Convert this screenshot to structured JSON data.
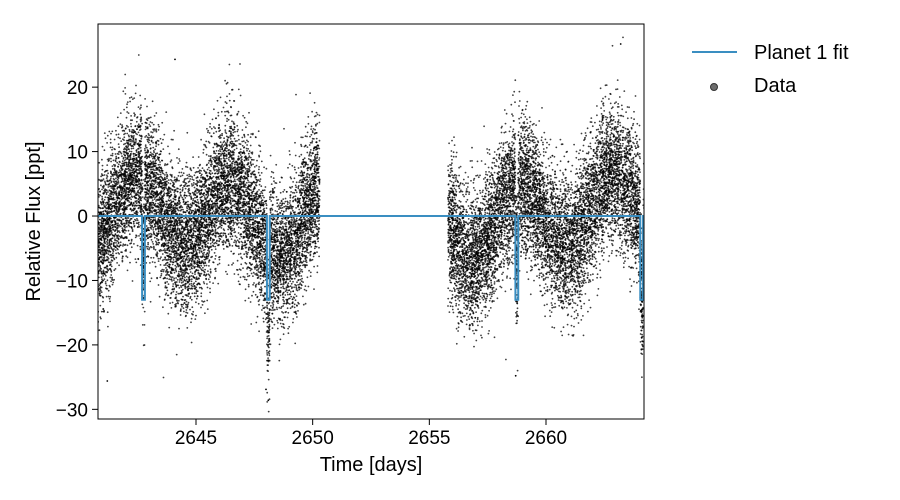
{
  "chart_data": {
    "type": "scatter",
    "xlabel": "Time [days]",
    "ylabel": "Relative Flux [ppt]",
    "xlim": [
      2640.8,
      2664.2
    ],
    "ylim": [
      -31.5,
      29.8
    ],
    "x_ticks": [
      2645,
      2650,
      2655,
      2660
    ],
    "y_ticks": [
      -30,
      -20,
      -10,
      0,
      10,
      20
    ],
    "x_tick_labels": [
      "2645",
      "2650",
      "2655",
      "2660"
    ],
    "y_tick_labels": [
      "−30",
      "−20",
      "−10",
      "0",
      "10",
      "20"
    ],
    "legend_position": "outside-right-top",
    "grid": false,
    "data_segments": [
      {
        "start": 2640.8,
        "end": 2650.3
      },
      {
        "start": 2655.8,
        "end": 2664.2
      }
    ],
    "series": [
      {
        "name": "Planet 1 fit",
        "kind": "line",
        "color": "#3a8ec1",
        "baseline": 0,
        "transit_depth": -13,
        "transit_duration": 0.12,
        "transit_times": [
          2642.75,
          2648.1,
          2658.75,
          2664.1
        ]
      },
      {
        "name": "Data",
        "kind": "scatter",
        "color": "#000000",
        "typical_range": [
          -15,
          15
        ],
        "extreme_points": [
          {
            "x": 2644.1,
            "y": 24.3
          },
          {
            "x": 2663.2,
            "y": 26.7
          },
          {
            "x": 2641.2,
            "y": -25.6
          },
          {
            "x": 2648.1,
            "y": -28.6
          },
          {
            "x": 2658.7,
            "y": -24.8
          },
          {
            "x": 2648.0,
            "y": -26.9
          }
        ]
      }
    ]
  }
}
